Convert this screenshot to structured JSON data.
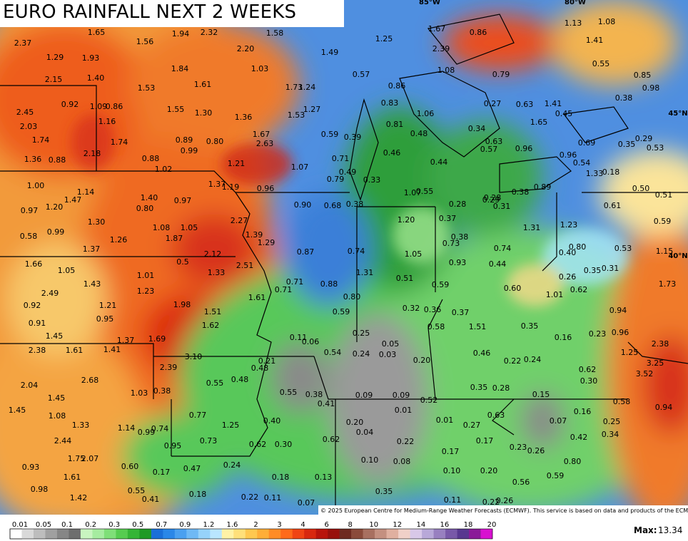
{
  "header": {
    "title": "EURO RAINFALL NEXT 2 WEEKS"
  },
  "map": {
    "graticule": [
      "85°W",
      "80°W",
      "45°N",
      "40°N"
    ],
    "labels": [
      "2.37",
      "1.65",
      "1.56",
      "1.94",
      "2.32",
      "1.58",
      "1.25",
      "1.67",
      "0.86",
      "1.13",
      "1.08",
      "1.29",
      "1.93",
      "2.20",
      "1.49",
      "2.39",
      "1.41",
      "0.55",
      "2.15",
      "1.40",
      "1.53",
      "1.84",
      "1.61",
      "1.03",
      "1.73",
      "1.24",
      "0.57",
      "0.86",
      "1.08",
      "0.79",
      "0.85",
      "0.98",
      "0.92",
      "1.09",
      "0.86",
      "1.55",
      "1.30",
      "1.36",
      "1.53",
      "1.27",
      "0.83",
      "1.06",
      "0.27",
      "0.63",
      "1.41",
      "0.38",
      "2.45",
      "1.16",
      "2.03",
      "0.81",
      "0.48",
      "0.34",
      "1.65",
      "0.45",
      "1.74",
      "1.74",
      "0.89",
      "0.80",
      "1.67",
      "2.63",
      "0.59",
      "0.39",
      "0.63",
      "0.57",
      "0.96",
      "0.69",
      "0.35",
      "0.29",
      "0.53",
      "1.36",
      "0.88",
      "2.18",
      "0.88",
      "0.99",
      "1.21",
      "1.07",
      "0.71",
      "0.46",
      "0.44",
      "0.96",
      "0.54",
      "1.02",
      "0.49",
      "0.33",
      "1.33",
      "0.18",
      "1.00",
      "1.14",
      "1.37",
      "1.19",
      "0.96",
      "0.79",
      "1.07",
      "0.55",
      "0.28",
      "0.38",
      "0.89",
      "0.50",
      "0.51",
      "0.97",
      "1.20",
      "1.47",
      "1.40",
      "0.97",
      "0.90",
      "0.68",
      "0.38",
      "0.28",
      "0.29",
      "0.31",
      "0.61",
      "0.80",
      "1.30",
      "1.20",
      "0.37",
      "1.31",
      "1.23",
      "0.59",
      "0.58",
      "0.99",
      "1.08",
      "1.05",
      "2.27",
      "1.39",
      "1.26",
      "1.87",
      "0.38",
      "0.73",
      "1.29",
      "1.37",
      "2.12",
      "0.87",
      "0.74",
      "1.05",
      "0.74",
      "0.80",
      "0.40",
      "0.53",
      "1.15",
      "1.66",
      "1.05",
      "0.5",
      "2.51",
      "0.93",
      "0.44",
      "0.26",
      "0.35",
      "0.31",
      "1.01",
      "1.33",
      "0.71",
      "0.88",
      "1.31",
      "0.51",
      "0.59",
      "0.60",
      "1.43",
      "1.23",
      "1.61",
      "0.71",
      "0.80",
      "1.01",
      "0.62",
      "2.49",
      "0.92",
      "1.21",
      "1.98",
      "1.51",
      "0.32",
      "0.36",
      "0.37",
      "0.94",
      "1.73",
      "0.91",
      "0.95",
      "1.62",
      "0.59",
      "0.58",
      "1.51",
      "0.35",
      "1.45",
      "1.37",
      "1.69",
      "0.11",
      "0.25",
      "0.16",
      "0.23",
      "0.96",
      "2.38",
      "1.61",
      "1.41",
      "0.06",
      "0.05",
      "0.54",
      "0.24",
      "0.03",
      "0.46",
      "1.25",
      "2.38",
      "3.10",
      "0.21",
      "0.20",
      "0.22",
      "0.24",
      "3.25",
      "2.39",
      "0.48",
      "0.62",
      "3.52",
      "2.68",
      "0.55",
      "0.48",
      "0.30",
      "2.04",
      "1.03",
      "0.38",
      "0.55",
      "0.38",
      "0.35",
      "0.28",
      "0.09",
      "0.09",
      "0.15",
      "1.45",
      "0.41",
      "0.52",
      "0.58",
      "0.94",
      "1.45",
      "1.08",
      "0.77",
      "0.01",
      "0.16",
      "0.63",
      "0.07",
      "0.25",
      "0.01",
      "0.27",
      "1.33",
      "1.14",
      "0.99",
      "0.74",
      "1.25",
      "0.40",
      "0.20",
      "0.04",
      "0.34",
      "2.44",
      "0.73",
      "0.95",
      "0.62",
      "0.30",
      "0.62",
      "0.22",
      "0.17",
      "0.42",
      "1.75",
      "2.07",
      "0.17",
      "0.23",
      "0.26",
      "0.80",
      "0.93",
      "0.60",
      "0.47",
      "0.24",
      "0.10",
      "0.08",
      "0.10",
      "0.20",
      "1.61",
      "0.17",
      "0.18",
      "0.13",
      "0.56",
      "0.59",
      "0.98",
      "0.55",
      "0.35",
      "0.18",
      "1.42",
      "0.41",
      "0.22",
      "0.11",
      "0.07",
      "0.11",
      "0.22",
      "0.26"
    ]
  },
  "footer": {
    "copyright": "© 2025 European Centre for Medium-Range Weather Forecasts (ECMWF). This service is based on data and products of the ECMWF.",
    "legend": [
      "0.01",
      "0.05",
      "0.1",
      "0.2",
      "0.3",
      "0.5",
      "0.7",
      "0.9",
      "1.2",
      "1.6",
      "2",
      "3",
      "4",
      "6",
      "8",
      "10",
      "12",
      "14",
      "16",
      "18",
      "20"
    ],
    "max_label": "Max:",
    "max_value": "13.34"
  }
}
